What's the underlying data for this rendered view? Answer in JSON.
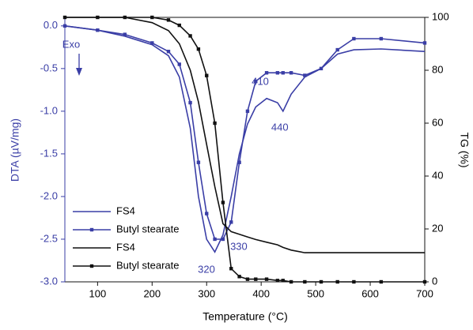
{
  "chart_data": {
    "type": "line",
    "x_label": "Temperature (°C)",
    "y_label": "DTA (µV/mg)",
    "y2_label": "TG (%)",
    "x": [
      40,
      100,
      150,
      200,
      230,
      250,
      270,
      285,
      300,
      315,
      330,
      345,
      360,
      375,
      390,
      410,
      430,
      440,
      455,
      480,
      510,
      540,
      570,
      620,
      700
    ],
    "series": [
      {
        "name": "FS4",
        "color": "#3a3ea6",
        "marker": false,
        "axis": "y",
        "values": [
          0,
          -0.05,
          -0.12,
          -0.22,
          -0.35,
          -0.6,
          -1.2,
          -2.0,
          -2.5,
          -2.65,
          -2.45,
          -2.0,
          -1.5,
          -1.15,
          -0.95,
          -0.85,
          -0.9,
          -1.0,
          -0.8,
          -0.6,
          -0.5,
          -0.33,
          -0.28,
          -0.27,
          -0.3
        ]
      },
      {
        "name": "Butyl stearate",
        "color": "#3a3ea6",
        "marker": true,
        "axis": "y",
        "values": [
          0,
          -0.05,
          -0.1,
          -0.2,
          -0.3,
          -0.45,
          -0.9,
          -1.6,
          -2.2,
          -2.5,
          -2.5,
          -2.3,
          -1.6,
          -1.0,
          -0.65,
          -0.55,
          -0.55,
          -0.55,
          -0.55,
          -0.58,
          -0.5,
          -0.28,
          -0.15,
          -0.15,
          -0.2
        ]
      },
      {
        "name": "FS4",
        "color": "#111111",
        "marker": false,
        "axis": "y2",
        "values": [
          100,
          100,
          100,
          98,
          95,
          90,
          80,
          68,
          52,
          36,
          22,
          19,
          18,
          17,
          16,
          15,
          14,
          13,
          12,
          11,
          11,
          11,
          11,
          11,
          11
        ]
      },
      {
        "name": "Butyl stearate",
        "color": "#111111",
        "marker": true,
        "axis": "y2",
        "values": [
          100,
          100,
          100,
          100,
          99,
          97,
          93,
          88,
          78,
          60,
          30,
          5,
          2,
          1,
          1,
          1,
          0.5,
          0.5,
          0,
          0,
          0,
          0,
          0,
          0,
          0
        ]
      }
    ],
    "xlim": [
      40,
      700
    ],
    "xticks": [
      100,
      200,
      300,
      400,
      500,
      600,
      700
    ],
    "ylim": [
      -3.0,
      0.1
    ],
    "yticks": [
      {
        "value": 0,
        "label": "0.0"
      },
      -0.5,
      {
        "value": -1,
        "label": "-1.0"
      },
      -1.5,
      {
        "value": -2,
        "label": "-2.0"
      },
      -2.5,
      {
        "value": -3,
        "label": "-3.0"
      }
    ],
    "y2lim": [
      0,
      100
    ],
    "y2ticks": [
      0,
      20,
      40,
      60,
      80,
      100
    ],
    "annotations": [
      "Exo",
      "410",
      "440",
      "320",
      "330"
    ],
    "legend": "lower left"
  }
}
